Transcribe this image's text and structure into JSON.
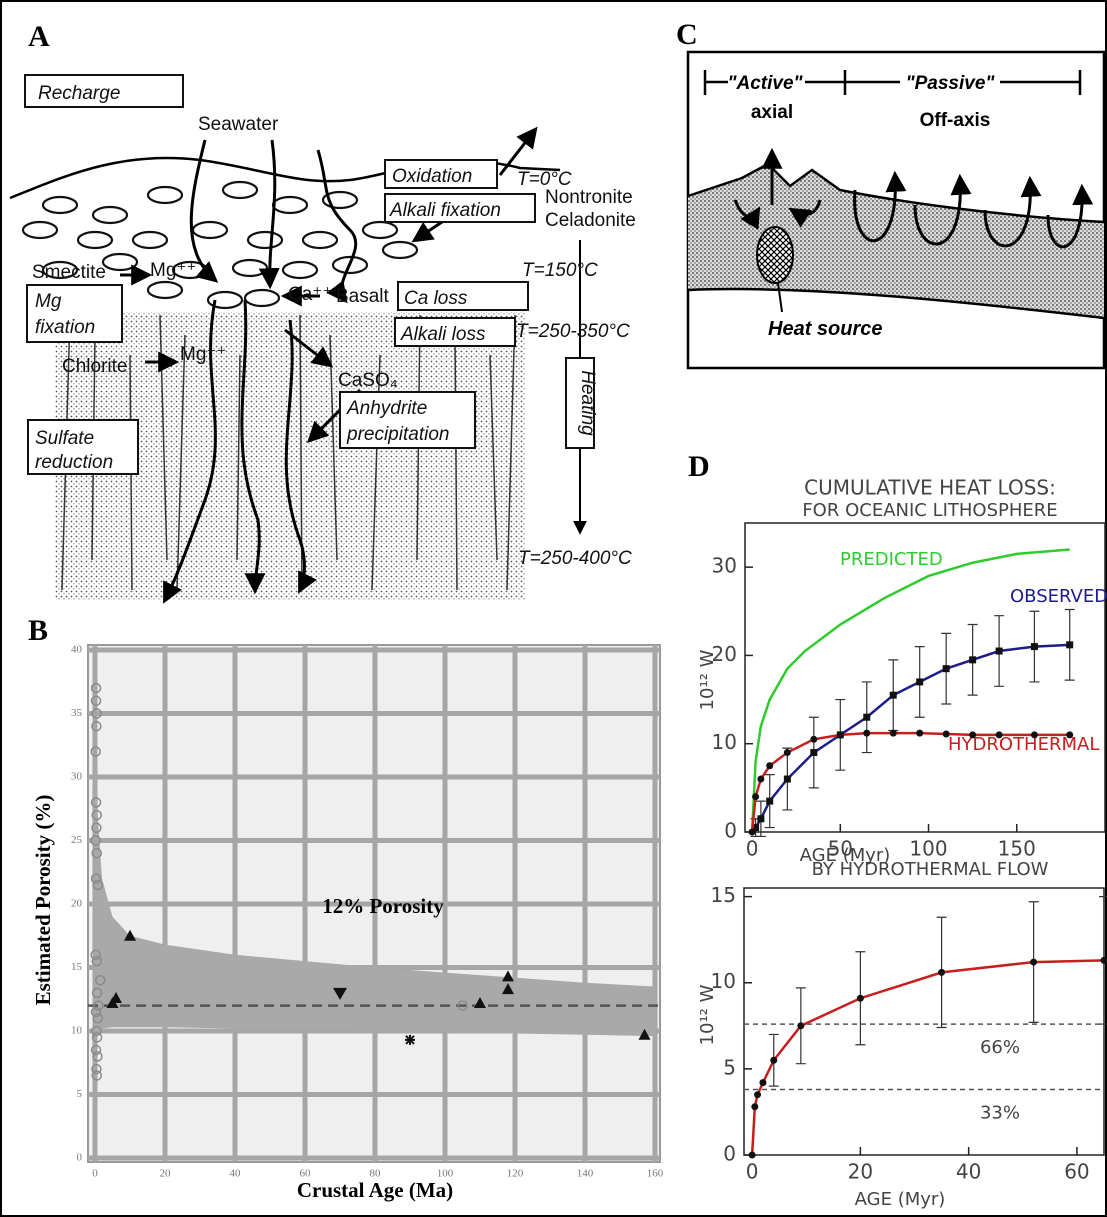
{
  "diagram_a": {
    "label": "A",
    "labels": [
      "Recharge",
      "Seawater",
      "T=0°C",
      "Oxidation",
      "Nontronite",
      "Alkali fixation",
      "Celadonite",
      "Smectite",
      "Mg⁺⁺",
      "T=150°C",
      "Mg",
      "fixation",
      "Ca⁺⁺",
      "Basalt",
      "Ca loss",
      "Alkali loss",
      "T=250-350°C",
      "Chlorite",
      "Mg⁺⁺",
      "CaSO₄",
      "Anhydrite",
      "precipitation",
      "Heating",
      "Sulfate",
      "reduction",
      "T=250-400°C"
    ]
  },
  "diagram_c": {
    "label": "C",
    "labels": [
      "\"Active\"",
      "axial",
      "\"Passive\"",
      "Off-axis",
      "Heat source"
    ]
  },
  "chart_data": [
    {
      "type": "scatter",
      "label": "B",
      "xlabel": "Crustal Age (Ma)",
      "ylabel": "Estimated Porosity  (%)",
      "annotation": "12% Porosity",
      "xlim": [
        0,
        160
      ],
      "ylim": [
        0,
        40
      ],
      "xticks": [
        0,
        20,
        40,
        60,
        80,
        100,
        120,
        140,
        160
      ],
      "yticks": [
        0,
        5,
        10,
        15,
        20,
        25,
        30,
        35,
        40
      ],
      "grid": true,
      "band": {
        "color": "#a9a9a9",
        "x": [
          0,
          1,
          2,
          5,
          10,
          20,
          40,
          60,
          80,
          100,
          120,
          140,
          160
        ],
        "upper": [
          32,
          26,
          22,
          19,
          17.5,
          16.8,
          16,
          15.5,
          15,
          14.6,
          14.2,
          13.8,
          13.5
        ],
        "lower": [
          10,
          10,
          10.2,
          10.3,
          10.3,
          10.3,
          10.2,
          10.1,
          10,
          9.9,
          9.8,
          9.7,
          9.6
        ]
      },
      "hlines": [
        {
          "value": 12
        }
      ],
      "series": [
        {
          "marker": "circle",
          "color": "#8a8a8a",
          "x": [
            0.3,
            0.3,
            0.5,
            0.4,
            0.2,
            0.3,
            0.5,
            0.4,
            0.2,
            0.5,
            0.3,
            0.8,
            0.2,
            0.5,
            1.5,
            0.6,
            1,
            0.3,
            0.8,
            0.4,
            0.6,
            0.3,
            0.7,
            0.4,
            0.5,
            105
          ],
          "values": [
            37,
            36,
            35,
            34,
            32,
            28,
            27,
            26,
            25,
            24,
            22,
            21.5,
            16,
            15.5,
            14,
            13,
            12,
            11.5,
            11,
            10,
            9.5,
            8.5,
            8,
            7,
            6.5,
            12
          ]
        },
        {
          "marker": "triangle-up",
          "color": "#111111",
          "x": [
            10,
            6,
            5,
            110,
            118,
            118,
            157
          ],
          "values": [
            17.5,
            12.6,
            12.2,
            12.2,
            14.3,
            13.3,
            9.7
          ]
        },
        {
          "marker": "triangle-down",
          "color": "#111111",
          "x": [
            70
          ],
          "values": [
            13
          ]
        },
        {
          "marker": "star",
          "color": "#111111",
          "x": [
            90
          ],
          "values": [
            9.3
          ]
        }
      ]
    },
    {
      "type": "line",
      "label": "D",
      "title": "CUMULATIVE HEAT LOSS:",
      "subtitle": "FOR OCEANIC LITHOSPHERE",
      "xlabel": "AGE (Myr)",
      "ylabel": "10¹² W",
      "xlim": [
        -4,
        200
      ],
      "ylim": [
        0,
        35
      ],
      "xticks": [
        0,
        50,
        100,
        150
      ],
      "yticks": [
        0,
        10,
        20,
        30
      ],
      "series": [
        {
          "name": "PREDICTED",
          "color": "#2ecc2e",
          "x": [
            0,
            2,
            5,
            10,
            20,
            30,
            50,
            75,
            100,
            125,
            150,
            180
          ],
          "values": [
            0,
            8,
            12,
            15,
            18.5,
            20.5,
            23.5,
            26.5,
            29,
            30.5,
            31.5,
            32
          ]
        },
        {
          "name": "OBSERVED",
          "color": "#1c1c8c",
          "marker": "square",
          "x": [
            2,
            5,
            10,
            20,
            35,
            50,
            65,
            80,
            95,
            110,
            125,
            140,
            160,
            180
          ],
          "values": [
            0.5,
            1.5,
            3.5,
            6,
            9,
            11,
            13,
            15.5,
            17,
            18.5,
            19.5,
            20.5,
            21,
            21.2
          ],
          "errors": [
            1,
            2,
            3,
            3.5,
            4,
            4,
            4,
            4,
            4,
            4,
            4,
            4,
            4,
            4
          ]
        },
        {
          "name": "HYDROTHERMAL",
          "color": "#c81e1e",
          "marker": "circle",
          "x": [
            0,
            2,
            5,
            10,
            20,
            35,
            50,
            65,
            80,
            95,
            110,
            125,
            140,
            160,
            180
          ],
          "values": [
            0,
            4,
            6,
            7.5,
            9,
            10.5,
            11,
            11.2,
            11.2,
            11.2,
            11.1,
            11,
            11,
            11,
            11
          ]
        }
      ]
    },
    {
      "type": "line",
      "title": "BY HYDROTHERMAL FLOW",
      "xlabel": "AGE (Myr)",
      "ylabel": "10¹² W",
      "xlim": [
        -1.5,
        65
      ],
      "ylim": [
        0,
        15.5
      ],
      "xticks": [
        0,
        20,
        40,
        60
      ],
      "yticks": [
        0,
        5,
        10,
        15
      ],
      "hlines": [
        {
          "value": 7.6,
          "label": "66%"
        },
        {
          "value": 3.8,
          "label": "33%"
        }
      ],
      "series": [
        {
          "color": "#c81e1e",
          "marker": "circle",
          "x": [
            0,
            0.5,
            1,
            2,
            4,
            9,
            20,
            35,
            52,
            65
          ],
          "values": [
            0,
            2.8,
            3.5,
            4.2,
            5.5,
            7.5,
            9.1,
            10.6,
            11.2,
            11.3
          ],
          "errors": [
            null,
            null,
            null,
            null,
            1.5,
            2.2,
            2.7,
            3.2,
            3.5,
            3.7
          ]
        }
      ]
    }
  ]
}
